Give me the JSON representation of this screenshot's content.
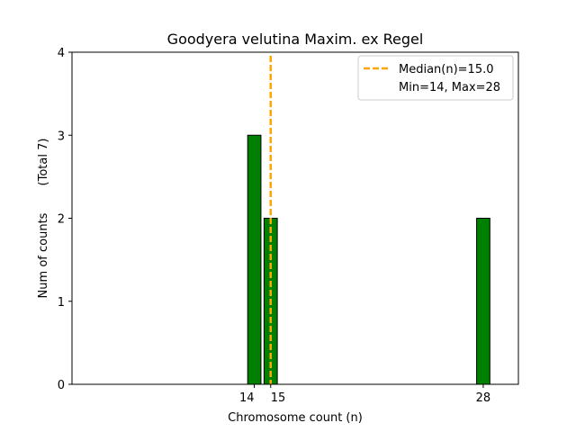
{
  "chart_data": {
    "type": "bar",
    "title": "Goodyera velutina Maxim. ex Regel",
    "xlabel": "Chromosome count (n)",
    "ylabel": "Num of counts",
    "ylabel_note": "(Total 7)",
    "xlim": [
      2.85,
      30.15
    ],
    "ylim": [
      0,
      4
    ],
    "xticks": [
      14,
      15,
      28
    ],
    "yticks": [
      0,
      1,
      2,
      3,
      4
    ],
    "bar_width": 0.81,
    "bars": [
      {
        "x": 14,
        "value": 3
      },
      {
        "x": 15,
        "value": 2
      },
      {
        "x": 28,
        "value": 2
      }
    ],
    "median": 15.0,
    "min": 14,
    "max": 28,
    "legend": {
      "position": "top-right",
      "entries": [
        "Median(n)=15.0",
        "Min=14, Max=28"
      ]
    },
    "colors": {
      "bar_fill": "#008000",
      "bar_edge": "#000000",
      "median_line": "#FFA500"
    },
    "grid": false
  }
}
